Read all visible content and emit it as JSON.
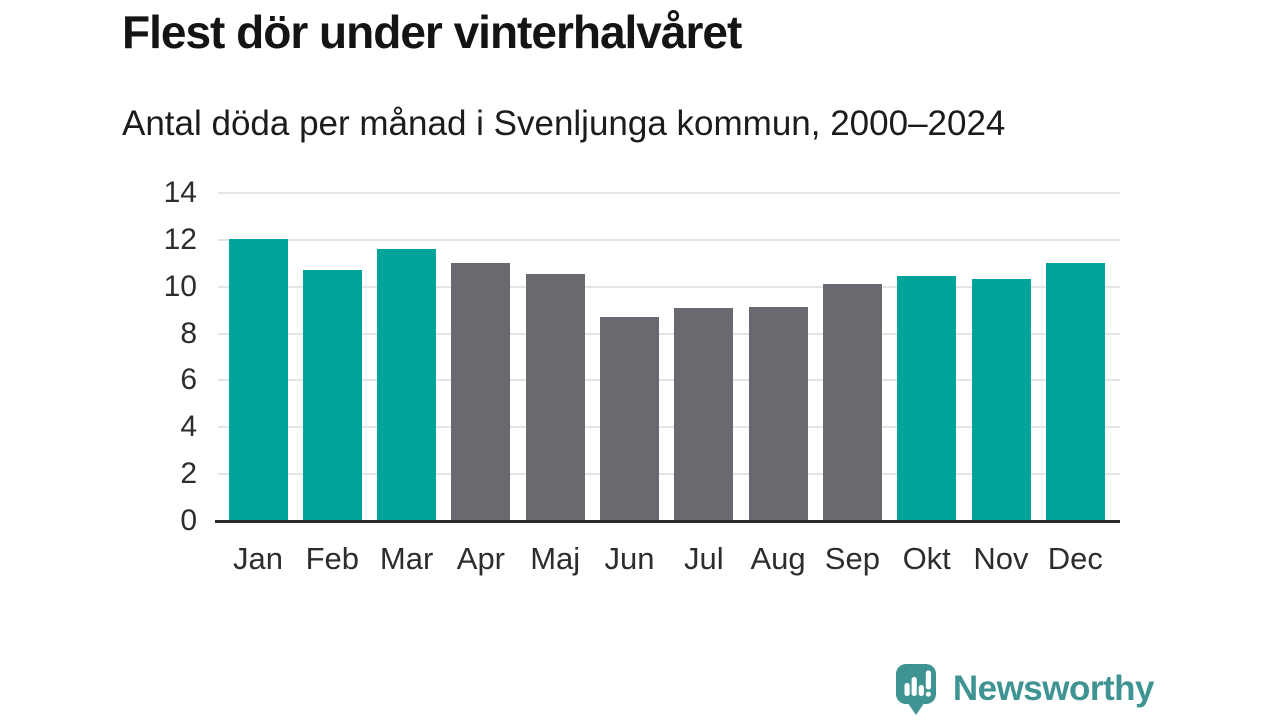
{
  "chart_data": {
    "type": "bar",
    "title": "Flest dör under vinterhalvåret",
    "subtitle": "Antal döda per månad i Svenljunga kommun, 2000–2024",
    "categories": [
      "Jan",
      "Feb",
      "Mar",
      "Apr",
      "Maj",
      "Jun",
      "Jul",
      "Aug",
      "Sep",
      "Okt",
      "Nov",
      "Dec"
    ],
    "values": [
      12.05,
      10.7,
      11.6,
      11.0,
      10.55,
      8.7,
      9.1,
      9.15,
      10.1,
      10.45,
      10.35,
      11.0
    ],
    "bar_groups": [
      "winter",
      "winter",
      "winter",
      "summer",
      "summer",
      "summer",
      "summer",
      "summer",
      "summer",
      "winter",
      "winter",
      "winter"
    ],
    "group_colors": {
      "winter": "#00A39A",
      "summer": "#6B6870"
    },
    "xlabel": "",
    "ylabel": "",
    "ylim": [
      0,
      14
    ],
    "yticks": [
      0,
      2,
      4,
      6,
      8,
      10,
      12,
      14
    ],
    "grid": "horizontal",
    "gridline_color": "#e4e4e4",
    "axis_line_color": "#2b2b2b",
    "legend": "none"
  },
  "footer": {
    "brand": "Newsworthy",
    "brand_color": "#3F9493"
  }
}
